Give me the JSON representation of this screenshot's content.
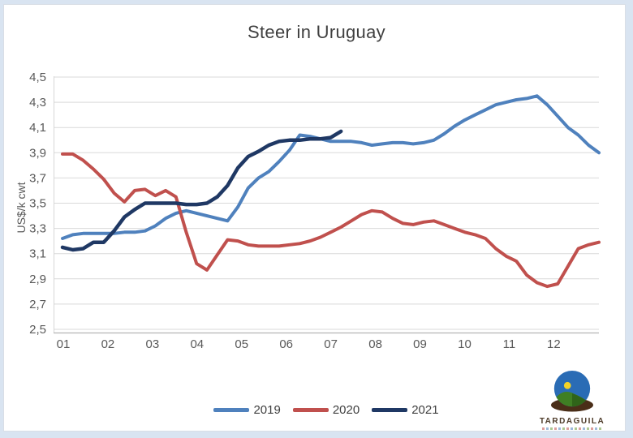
{
  "title": "Steer in Uruguay",
  "y_axis_label": "US$/k cwt",
  "legend": {
    "items": [
      "2019",
      "2020",
      "2021"
    ]
  },
  "logo": {
    "text": "TARDAGUILA",
    "globe_icon_colors": {
      "sky": "#2a6cb5",
      "hill": "#3f7f23",
      "base": "#4a2e18",
      "sun": "#f5d327"
    }
  },
  "colors": {
    "gridline": "#d9d9d9",
    "x_axis_line": "#b3b3b3",
    "y_axis_line": "#d6d6d6",
    "tick_text": "#595959",
    "title_text": "#3f3f3f",
    "outer_background": "#d9e4f1",
    "plot_background": "#ffffff"
  },
  "chart_data": {
    "type": "line",
    "title": "Steer in Uruguay",
    "xlabel": "",
    "ylabel": "US$/k cwt",
    "ylim": [
      2.5,
      4.5
    ],
    "ytick_step": 0.2,
    "y_ticks": [
      "4,5",
      "4,3",
      "4,1",
      "3,9",
      "3,7",
      "3,5",
      "3,3",
      "3,1",
      "2,9",
      "2,7",
      "2,5"
    ],
    "x_ticks": [
      "01",
      "02",
      "03",
      "04",
      "05",
      "06",
      "07",
      "08",
      "09",
      "10",
      "11",
      "12"
    ],
    "x_unit": "week-of-year (approx., plotted weekly)",
    "grid": "horizontal-only",
    "legend_position": "bottom-center",
    "decimal_separator": ",",
    "series": [
      {
        "name": "2019",
        "color": "#4f81bd",
        "stroke_width": 4,
        "values": [
          3.22,
          3.25,
          3.26,
          3.26,
          3.26,
          3.26,
          3.27,
          3.27,
          3.28,
          3.32,
          3.38,
          3.42,
          3.44,
          3.42,
          3.4,
          3.38,
          3.36,
          3.47,
          3.62,
          3.7,
          3.75,
          3.83,
          3.92,
          4.04,
          4.03,
          4.01,
          3.99,
          3.99,
          3.99,
          3.98,
          3.96,
          3.97,
          3.98,
          3.98,
          3.97,
          3.98,
          4.0,
          4.05,
          4.11,
          4.16,
          4.2,
          4.24,
          4.28,
          4.3,
          4.32,
          4.33,
          4.35,
          4.28,
          4.19,
          4.1,
          4.04,
          3.96,
          3.9
        ]
      },
      {
        "name": "2020",
        "color": "#c0504d",
        "stroke_width": 4,
        "values": [
          3.89,
          3.89,
          3.84,
          3.77,
          3.69,
          3.58,
          3.51,
          3.6,
          3.61,
          3.56,
          3.6,
          3.55,
          3.27,
          3.02,
          2.97,
          3.09,
          3.21,
          3.2,
          3.17,
          3.16,
          3.16,
          3.16,
          3.17,
          3.18,
          3.2,
          3.23,
          3.27,
          3.31,
          3.36,
          3.41,
          3.44,
          3.43,
          3.38,
          3.34,
          3.33,
          3.35,
          3.36,
          3.33,
          3.3,
          3.27,
          3.25,
          3.22,
          3.14,
          3.08,
          3.04,
          2.93,
          2.87,
          2.84,
          2.86,
          3.0,
          3.14,
          3.17,
          3.19
        ]
      },
      {
        "name": "2021",
        "color": "#1f3864",
        "stroke_width": 4.5,
        "values": [
          3.15,
          3.13,
          3.14,
          3.19,
          3.19,
          3.28,
          3.39,
          3.45,
          3.5,
          3.5,
          3.5,
          3.5,
          3.49,
          3.49,
          3.5,
          3.55,
          3.64,
          3.78,
          3.87,
          3.91,
          3.96,
          3.99,
          4.0,
          4.0,
          4.01,
          4.01,
          4.02,
          4.07
        ]
      }
    ]
  }
}
